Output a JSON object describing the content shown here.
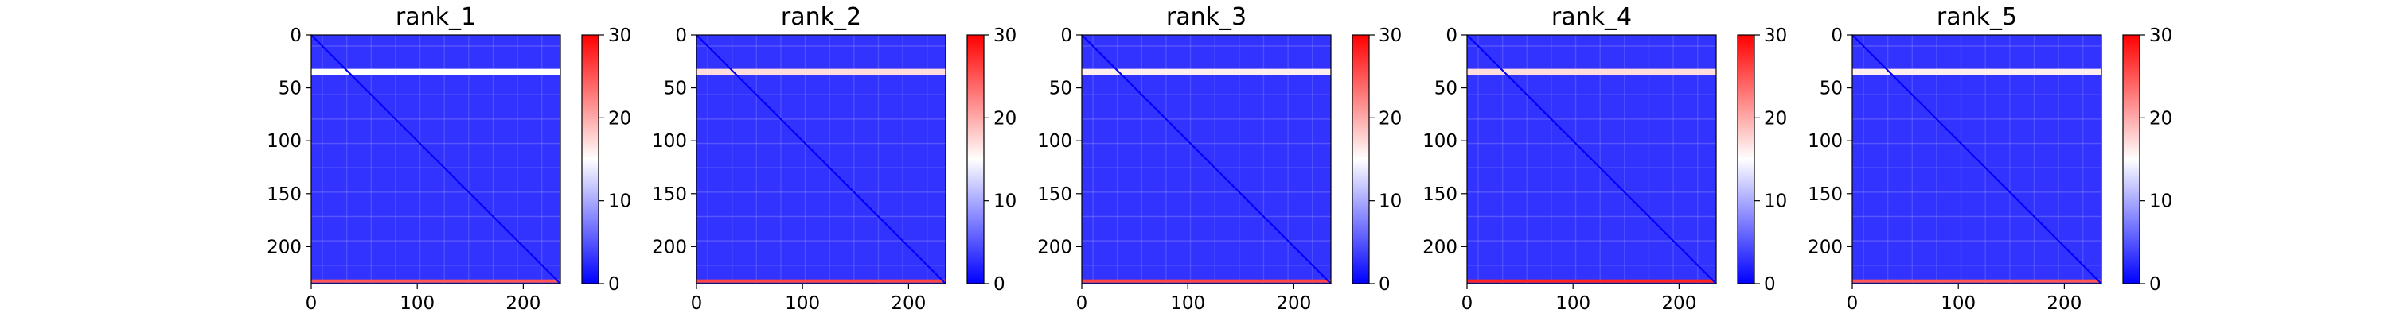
{
  "chart_data": [
    {
      "type": "heatmap",
      "title": "rank_1",
      "xlabel": "",
      "ylabel": "",
      "x_ticks": [
        0,
        100,
        200
      ],
      "y_ticks": [
        0,
        50,
        100,
        150,
        200
      ],
      "xlim": [
        0,
        235
      ],
      "ylim": [
        235,
        0
      ],
      "matrix_size": 235,
      "colormap": [
        "#0000ff",
        "#ffffff",
        "#ff0000"
      ],
      "colorbar": {
        "min": 0,
        "max": 30,
        "ticks": [
          0,
          10,
          20,
          30
        ]
      },
      "background_value": 3,
      "diagonal_value": 0,
      "features": [
        {
          "kind": "row_band",
          "y_from": 32,
          "y_to": 38,
          "value": 15
        },
        {
          "kind": "row_band",
          "y_from": 231,
          "y_to": 234,
          "value": 25
        }
      ]
    },
    {
      "type": "heatmap",
      "title": "rank_2",
      "xlabel": "",
      "ylabel": "",
      "x_ticks": [
        0,
        100,
        200
      ],
      "y_ticks": [
        0,
        50,
        100,
        150,
        200
      ],
      "xlim": [
        0,
        235
      ],
      "ylim": [
        235,
        0
      ],
      "matrix_size": 235,
      "colormap": [
        "#0000ff",
        "#ffffff",
        "#ff0000"
      ],
      "colorbar": {
        "min": 0,
        "max": 30,
        "ticks": [
          0,
          10,
          20,
          30
        ]
      },
      "background_value": 3,
      "diagonal_value": 0,
      "features": [
        {
          "kind": "row_band",
          "y_from": 32,
          "y_to": 38,
          "value": 17
        },
        {
          "kind": "row_band",
          "y_from": 231,
          "y_to": 234,
          "value": 26
        }
      ]
    },
    {
      "type": "heatmap",
      "title": "rank_3",
      "xlabel": "",
      "ylabel": "",
      "x_ticks": [
        0,
        100,
        200
      ],
      "y_ticks": [
        0,
        50,
        100,
        150,
        200
      ],
      "xlim": [
        0,
        235
      ],
      "ylim": [
        235,
        0
      ],
      "matrix_size": 235,
      "colormap": [
        "#0000ff",
        "#ffffff",
        "#ff0000"
      ],
      "colorbar": {
        "min": 0,
        "max": 30,
        "ticks": [
          0,
          10,
          20,
          30
        ]
      },
      "background_value": 3,
      "diagonal_value": 0,
      "features": [
        {
          "kind": "row_band",
          "y_from": 32,
          "y_to": 38,
          "value": 16
        },
        {
          "kind": "row_band",
          "y_from": 231,
          "y_to": 234,
          "value": 26
        }
      ]
    },
    {
      "type": "heatmap",
      "title": "rank_4",
      "xlabel": "",
      "ylabel": "",
      "x_ticks": [
        0,
        100,
        200
      ],
      "y_ticks": [
        0,
        50,
        100,
        150,
        200
      ],
      "xlim": [
        0,
        235
      ],
      "ylim": [
        235,
        0
      ],
      "matrix_size": 235,
      "colormap": [
        "#0000ff",
        "#ffffff",
        "#ff0000"
      ],
      "colorbar": {
        "min": 0,
        "max": 30,
        "ticks": [
          0,
          10,
          20,
          30
        ]
      },
      "background_value": 3,
      "diagonal_value": 0,
      "features": [
        {
          "kind": "row_band",
          "y_from": 32,
          "y_to": 38,
          "value": 17
        },
        {
          "kind": "row_band",
          "y_from": 231,
          "y_to": 234,
          "value": 28
        }
      ]
    },
    {
      "type": "heatmap",
      "title": "rank_5",
      "xlabel": "",
      "ylabel": "",
      "x_ticks": [
        0,
        100,
        200
      ],
      "y_ticks": [
        0,
        50,
        100,
        150,
        200
      ],
      "xlim": [
        0,
        235
      ],
      "ylim": [
        235,
        0
      ],
      "matrix_size": 235,
      "colormap": [
        "#0000ff",
        "#ffffff",
        "#ff0000"
      ],
      "colorbar": {
        "min": 0,
        "max": 30,
        "ticks": [
          0,
          10,
          20,
          30
        ]
      },
      "background_value": 3,
      "diagonal_value": 0,
      "features": [
        {
          "kind": "row_band",
          "y_from": 32,
          "y_to": 38,
          "value": 16
        },
        {
          "kind": "row_band",
          "y_from": 231,
          "y_to": 234,
          "value": 25
        }
      ]
    }
  ]
}
